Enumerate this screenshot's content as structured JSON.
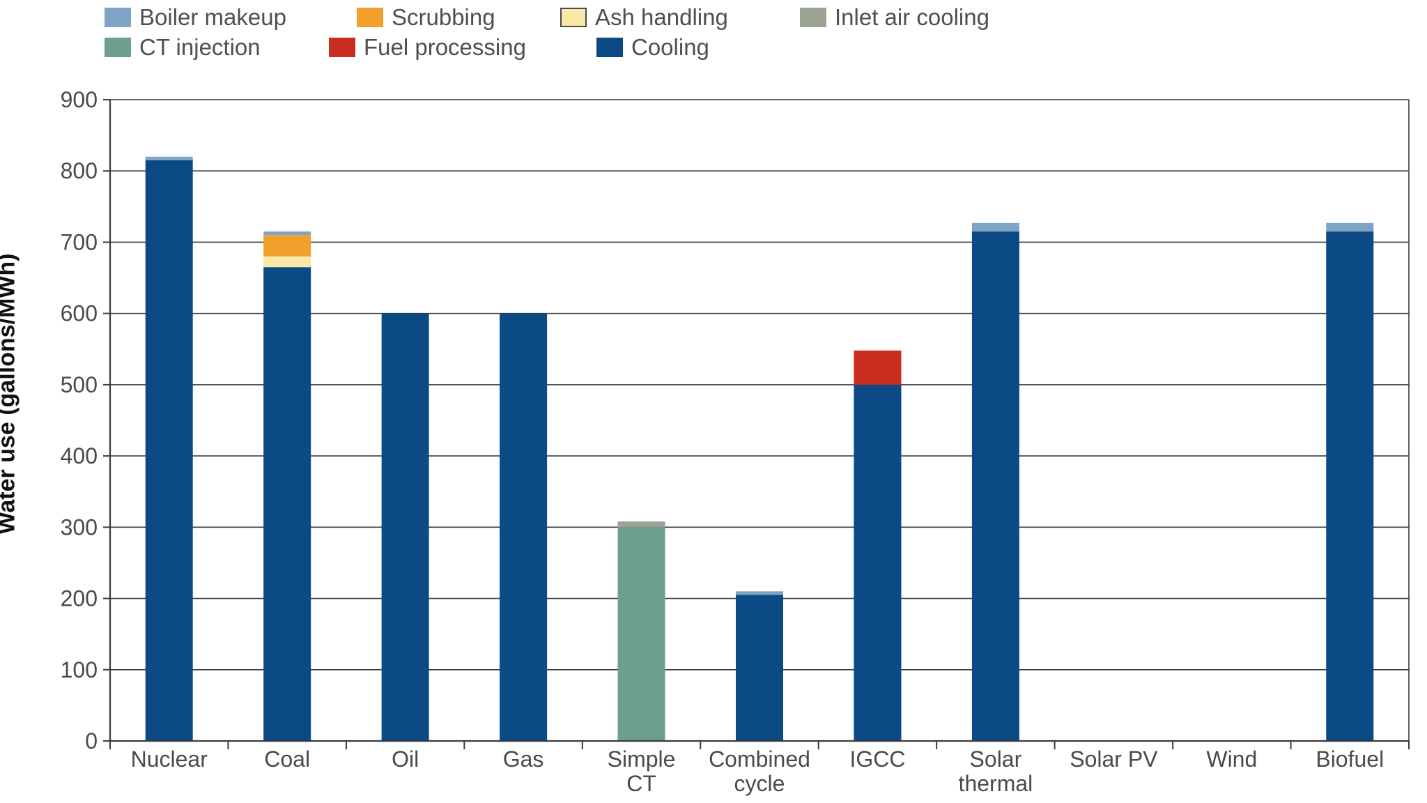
{
  "chart_data": {
    "type": "bar",
    "stacked": true,
    "categories": [
      "Nuclear",
      "Coal",
      "Oil",
      "Gas",
      "Simple CT",
      "Combined cycle",
      "IGCC",
      "Solar thermal",
      "Solar PV",
      "Wind",
      "Biofuel"
    ],
    "category_labels": [
      [
        "Nuclear"
      ],
      [
        "Coal"
      ],
      [
        "Oil"
      ],
      [
        "Gas"
      ],
      [
        "Simple",
        "CT"
      ],
      [
        "Combined",
        "cycle"
      ],
      [
        "IGCC"
      ],
      [
        "Solar",
        "thermal"
      ],
      [
        "Solar PV"
      ],
      [
        "Wind"
      ],
      [
        "Biofuel"
      ]
    ],
    "series": [
      {
        "name": "Cooling",
        "color": "#0b4a84",
        "values": [
          815,
          665,
          600,
          600,
          0,
          205,
          500,
          715,
          0,
          0,
          715
        ]
      },
      {
        "name": "CT injection",
        "color": "#6d9f8c",
        "values": [
          0,
          0,
          0,
          0,
          300,
          0,
          0,
          0,
          0,
          0,
          0
        ]
      },
      {
        "name": "Ash handling",
        "color": "#fbe7a6",
        "values": [
          0,
          15,
          0,
          0,
          0,
          0,
          0,
          0,
          0,
          0,
          0
        ]
      },
      {
        "name": "Scrubbing",
        "color": "#f2a02b",
        "values": [
          0,
          30,
          0,
          0,
          0,
          0,
          0,
          0,
          0,
          0,
          0
        ]
      },
      {
        "name": "Fuel processing",
        "color": "#c92d1f",
        "values": [
          0,
          0,
          0,
          0,
          0,
          0,
          48,
          0,
          0,
          0,
          0
        ]
      },
      {
        "name": "Inlet air cooling",
        "color": "#9aa394",
        "values": [
          0,
          0,
          0,
          0,
          8,
          0,
          0,
          0,
          0,
          0,
          0
        ]
      },
      {
        "name": "Boiler makeup",
        "color": "#7ea3c4",
        "values": [
          5,
          5,
          0,
          0,
          0,
          5,
          0,
          12,
          0,
          0,
          12
        ]
      }
    ],
    "legend": [
      {
        "name": "Boiler makeup",
        "color": "#7ea3c4"
      },
      {
        "name": "Scrubbing",
        "color": "#f2a02b"
      },
      {
        "name": "Ash handling",
        "color": "#fbe7a6"
      },
      {
        "name": "Inlet air cooling",
        "color": "#9aa394"
      },
      {
        "name": "CT injection",
        "color": "#6d9f8c"
      },
      {
        "name": "Fuel processing",
        "color": "#c92d1f"
      },
      {
        "name": "Cooling",
        "color": "#0b4a84"
      }
    ],
    "legend_position": "top-left",
    "ylabel": "Water use (gallons/MWh)",
    "xlabel": "",
    "title": "",
    "ylim": [
      0,
      900
    ],
    "yticks": [
      0,
      100,
      200,
      300,
      400,
      500,
      600,
      700,
      800,
      900
    ],
    "grid": true
  }
}
